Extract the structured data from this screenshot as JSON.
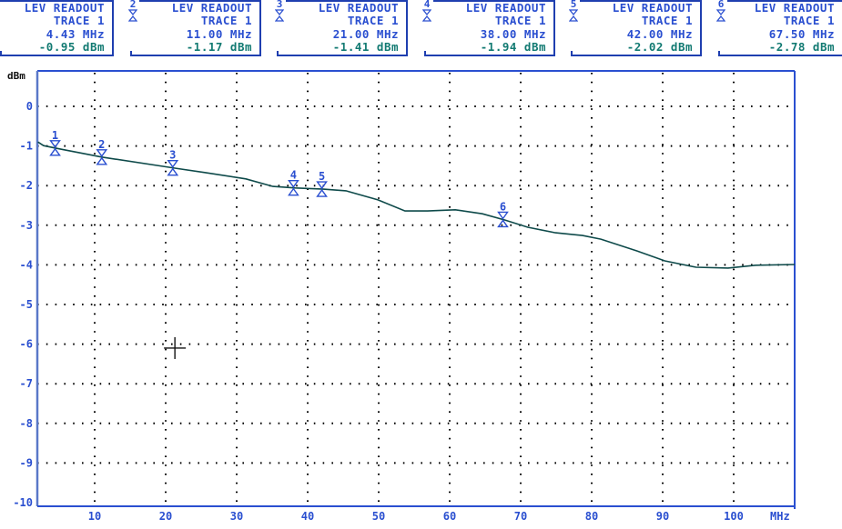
{
  "readouts": [
    {
      "id": "1",
      "title": "LEV READOUT",
      "trace": "TRACE 1",
      "freq": "4.43 MHz",
      "level": "-0.95 dBm",
      "show_badge": false
    },
    {
      "id": "2",
      "title": "LEV READOUT",
      "trace": "TRACE 1",
      "freq": "11.00 MHz",
      "level": "-1.17 dBm",
      "show_badge": true
    },
    {
      "id": "3",
      "title": "LEV READOUT",
      "trace": "TRACE 1",
      "freq": "21.00 MHz",
      "level": "-1.41 dBm",
      "show_badge": true
    },
    {
      "id": "4",
      "title": "LEV READOUT",
      "trace": "TRACE 1",
      "freq": "38.00 MHz",
      "level": "-1.94 dBm",
      "show_badge": true
    },
    {
      "id": "5",
      "title": "LEV READOUT",
      "trace": "TRACE 1",
      "freq": "42.00 MHz",
      "level": "-2.02 dBm",
      "show_badge": true
    },
    {
      "id": "6",
      "title": "LEV READOUT",
      "trace": "TRACE 1",
      "freq": "67.50 MHz",
      "level": "-2.78 dBm",
      "show_badge": true
    }
  ],
  "axes": {
    "y_unit": "dBm",
    "x_unit": "MHz",
    "y_ticks": [
      "0",
      "-1",
      "-2",
      "-3",
      "-4",
      "-5",
      "-6",
      "-7",
      "-8",
      "-9",
      "-10"
    ],
    "x_ticks": [
      "10",
      "20",
      "30",
      "40",
      "50",
      "60",
      "70",
      "80",
      "90",
      "100"
    ]
  },
  "colors": {
    "frame": "#2a4fd0",
    "axis_text": "#2a4fd0",
    "level_text": "#127a72",
    "trace": "#0e4a4a",
    "grid": "#000000",
    "marker": "#2a4fd0"
  },
  "cursor": {
    "freq_mhz": 21.3,
    "level_dbm": -6.1
  },
  "chart_data": {
    "type": "line",
    "title": "",
    "xlabel": "MHz",
    "ylabel": "dBm",
    "xlim": [
      2,
      108.6
    ],
    "ylim": [
      -10,
      0.9
    ],
    "grid": true,
    "x_ticks": [
      10,
      20,
      30,
      40,
      50,
      60,
      70,
      80,
      90,
      100
    ],
    "y_ticks": [
      0,
      -1,
      -2,
      -3,
      -4,
      -5,
      -6,
      -7,
      -8,
      -9,
      -10
    ],
    "series": [
      {
        "name": "TRACE 1",
        "x": [
          2.0,
          2.8,
          4.4,
          11.0,
          21.3,
          25.5,
          31.3,
          35.1,
          38.3,
          42.2,
          45.4,
          49.9,
          53.7,
          56.9,
          60.8,
          64.6,
          67.8,
          71.0,
          74.9,
          78.7,
          81.3,
          86.4,
          90.3,
          94.7,
          99.2,
          103.1,
          108.6
        ],
        "values": [
          -0.9,
          -0.99,
          -1.05,
          -1.28,
          -1.56,
          -1.67,
          -1.83,
          -2.02,
          -2.06,
          -2.09,
          -2.13,
          -2.36,
          -2.64,
          -2.64,
          -2.61,
          -2.71,
          -2.87,
          -3.05,
          -3.19,
          -3.26,
          -3.35,
          -3.65,
          -3.9,
          -4.06,
          -4.08,
          -4.01,
          -3.99
        ]
      }
    ],
    "markers": [
      {
        "id": 1,
        "freq_mhz": 4.43,
        "level_dbm": -0.95
      },
      {
        "id": 2,
        "freq_mhz": 11.0,
        "level_dbm": -1.17
      },
      {
        "id": 3,
        "freq_mhz": 21.0,
        "level_dbm": -1.41
      },
      {
        "id": 4,
        "freq_mhz": 38.0,
        "level_dbm": -1.94
      },
      {
        "id": 5,
        "freq_mhz": 42.0,
        "level_dbm": -2.02
      },
      {
        "id": 6,
        "freq_mhz": 67.5,
        "level_dbm": -2.78
      }
    ]
  }
}
